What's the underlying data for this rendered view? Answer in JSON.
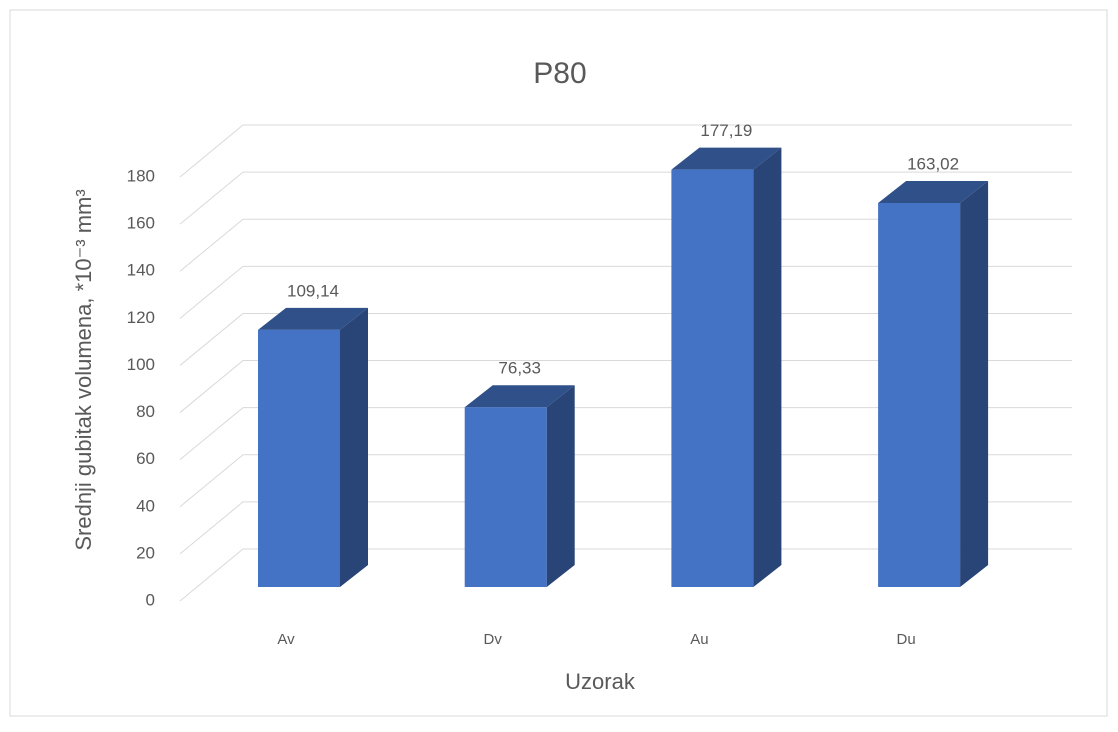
{
  "chart_data": {
    "type": "bar3d",
    "title": "P80",
    "x_label": "Uzorak",
    "y_label": "Srednji gubitak volumena, *10⁻³ mm³",
    "categories": [
      "Av",
      "Dv",
      "Au",
      "Du"
    ],
    "values": [
      109.14,
      76.33,
      177.19,
      163.02
    ],
    "value_labels": [
      "109,14",
      "76,33",
      "177,19",
      "163,02"
    ],
    "color": "#4472c4",
    "ylim": [
      0,
      180
    ],
    "yticks": [
      0,
      20,
      40,
      60,
      80,
      100,
      120,
      140,
      160,
      180
    ],
    "grid": true
  }
}
